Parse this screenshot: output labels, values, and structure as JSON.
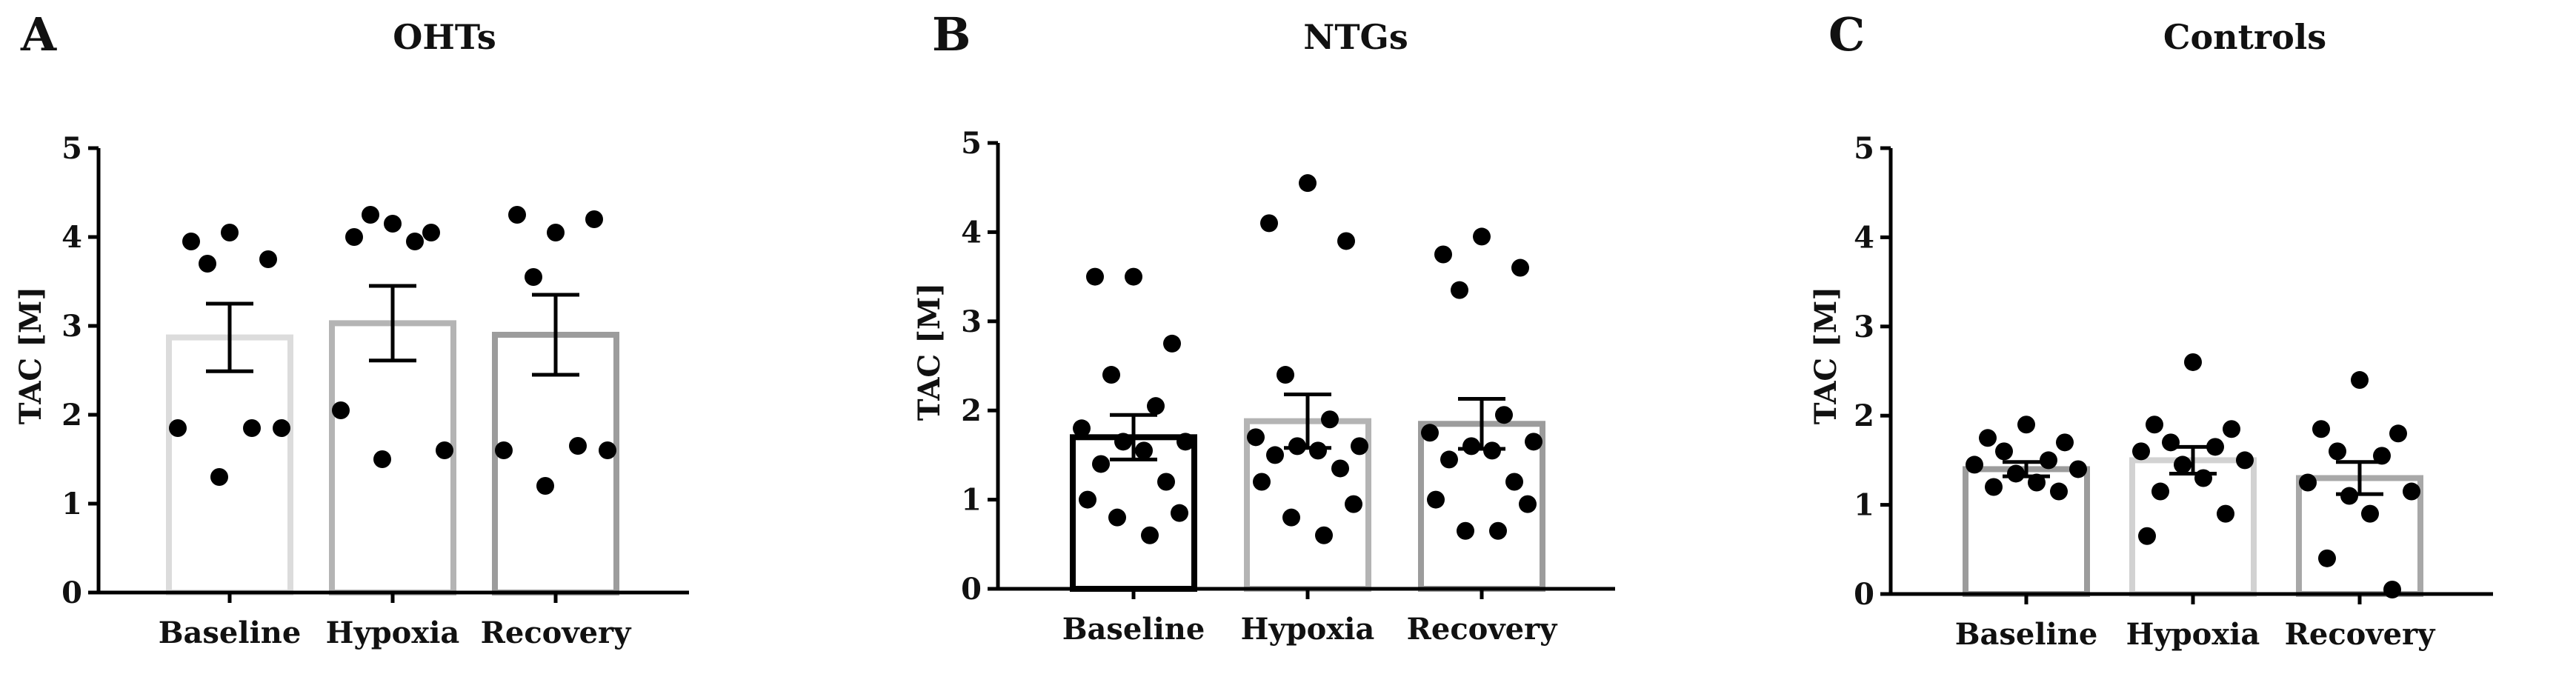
{
  "figure": {
    "panels": [
      {
        "letter": "A",
        "title": "OHTs"
      },
      {
        "letter": "B",
        "title": "NTGs"
      },
      {
        "letter": "C",
        "title": "Controls"
      }
    ]
  },
  "chart_data": [
    {
      "type": "bar",
      "panel": "A",
      "title": "OHTs",
      "xlabel": "",
      "ylabel": "TAC [M]",
      "ylim": [
        0,
        5
      ],
      "yticks": [
        "0",
        "1",
        "2",
        "3",
        "4",
        "5"
      ],
      "categories": [
        "Baseline",
        "Hypoxia",
        "Recovery"
      ],
      "values": [
        2.87,
        3.03,
        2.9
      ],
      "sem": [
        0.38,
        0.42,
        0.45
      ],
      "bar_colors": [
        "#dcdcdc",
        "#b4b4b4",
        "#9c9c9c"
      ],
      "points": [
        [
          4.05,
          3.95,
          3.75,
          3.7,
          1.85,
          1.85,
          1.85,
          1.3
        ],
        [
          4.15,
          4.0,
          4.05,
          4.25,
          3.95,
          2.05,
          1.6,
          1.5
        ],
        [
          4.05,
          4.25,
          4.2,
          3.55,
          1.65,
          1.6,
          1.6,
          1.2
        ]
      ]
    },
    {
      "type": "bar",
      "panel": "B",
      "title": "NTGs",
      "xlabel": "",
      "ylabel": "TAC [M]",
      "ylim": [
        0,
        5
      ],
      "yticks": [
        "0",
        "1",
        "2",
        "3",
        "4",
        "5"
      ],
      "categories": [
        "Baseline",
        "Hypoxia",
        "Recovery"
      ],
      "values": [
        1.7,
        1.88,
        1.85
      ],
      "sem": [
        0.25,
        0.3,
        0.28
      ],
      "bar_colors": [
        "#000000",
        "#b4b4b4",
        "#9c9c9c"
      ],
      "points": [
        [
          3.5,
          3.5,
          2.75,
          2.4,
          2.05,
          1.8,
          1.65,
          1.65,
          1.55,
          1.4,
          1.2,
          1.0,
          0.85,
          0.8,
          0.6
        ],
        [
          4.55,
          4.1,
          3.9,
          2.4,
          1.9,
          1.7,
          1.6,
          1.6,
          1.55,
          1.5,
          1.35,
          1.2,
          0.95,
          0.8,
          0.6
        ],
        [
          3.95,
          3.75,
          3.6,
          3.35,
          1.95,
          1.75,
          1.65,
          1.6,
          1.55,
          1.45,
          1.2,
          1.0,
          0.95,
          0.65,
          0.65
        ]
      ]
    },
    {
      "type": "bar",
      "panel": "C",
      "title": "Controls",
      "xlabel": "",
      "ylabel": "TAC [M]",
      "ylim": [
        0,
        5
      ],
      "yticks": [
        "0",
        "1",
        "2",
        "3",
        "4",
        "5"
      ],
      "categories": [
        "Baseline",
        "Hypoxia",
        "Recovery"
      ],
      "values": [
        1.4,
        1.5,
        1.3
      ],
      "sem": [
        0.08,
        0.15,
        0.18
      ],
      "bar_colors": [
        "#9c9c9c",
        "#d2d2d2",
        "#a8a8a8"
      ],
      "points": [
        [
          1.9,
          1.75,
          1.7,
          1.6,
          1.5,
          1.45,
          1.4,
          1.35,
          1.25,
          1.2,
          1.15
        ],
        [
          2.6,
          1.9,
          1.85,
          1.7,
          1.65,
          1.6,
          1.5,
          1.45,
          1.3,
          1.15,
          0.9,
          0.65
        ],
        [
          2.4,
          1.85,
          1.8,
          1.6,
          1.55,
          1.25,
          1.15,
          1.1,
          0.9,
          0.4,
          0.05
        ]
      ]
    }
  ]
}
